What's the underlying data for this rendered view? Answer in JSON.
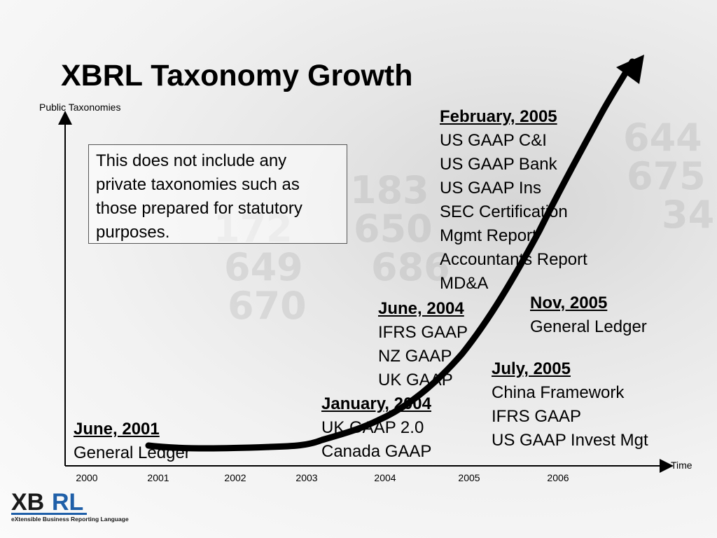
{
  "title": "XBRL Taxonomy Growth",
  "axes": {
    "y_label": "Public Taxonomies",
    "x_label": "Time"
  },
  "x_ticks": [
    "2000",
    "2001",
    "2002",
    "2003",
    "2004",
    "2005",
    "2006"
  ],
  "note": "This does not include any private taxonomies such as those prepared for statutory purposes.",
  "milestones": [
    {
      "date": "June, 2001",
      "items": [
        "General Ledger"
      ]
    },
    {
      "date": "January, 2004",
      "items": [
        "UK GAAP 2.0",
        "Canada GAAP"
      ]
    },
    {
      "date": "June, 2004",
      "items": [
        "IFRS GAAP",
        "NZ GAAP",
        "UK GAAP"
      ]
    },
    {
      "date": "February, 2005",
      "items": [
        "US GAAP C&I",
        "US GAAP Bank",
        "US GAAP Ins",
        "SEC Certification",
        "Mgmt Report",
        "Accountants Report",
        "MD&A"
      ]
    },
    {
      "date": "Nov, 2005",
      "items": [
        "General Ledger"
      ]
    },
    {
      "date": "July, 2005",
      "items": [
        "China Framework",
        "IFRS GAAP",
        "US GAAP Invest Mgt"
      ]
    }
  ],
  "logo": {
    "wordmark": "XBRL",
    "tagline": "eXtensible Business Reporting Language",
    "color_dark": "#1a1a1a",
    "color_blue": "#1f5fa8"
  },
  "colors": {
    "curve": "#000000",
    "axis": "#000000"
  }
}
